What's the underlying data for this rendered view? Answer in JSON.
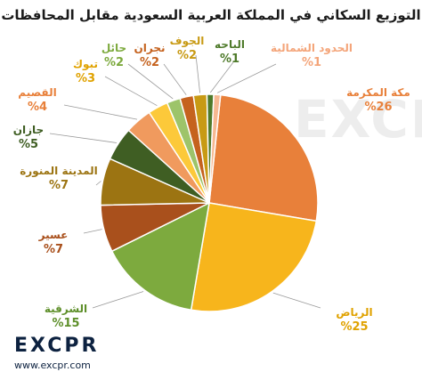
{
  "chart_data": {
    "type": "pie",
    "title": "التوزيع السكاني في المملكة العربية السعودية مقابل المحافظات",
    "unit_prefix": "%",
    "slices": [
      {
        "label": "مكة المكرمة",
        "value": 26,
        "color": "#E8803A"
      },
      {
        "label": "الرياض",
        "value": 25,
        "color": "#F7B51C"
      },
      {
        "label": "الشرقية",
        "value": 15,
        "color": "#7DAA3E"
      },
      {
        "label": "عسير",
        "value": 7,
        "color": "#A9501C"
      },
      {
        "label": "المدينة المنورة",
        "value": 7,
        "color": "#9C7412"
      },
      {
        "label": "جازان",
        "value": 5,
        "color": "#3F5E23"
      },
      {
        "label": "القصيم",
        "value": 4,
        "color": "#F09A5E"
      },
      {
        "label": "تبوك",
        "value": 3,
        "color": "#FCC93A"
      },
      {
        "label": "حائل",
        "value": 2,
        "color": "#9DC46A"
      },
      {
        "label": "نجران",
        "value": 2,
        "color": "#C5621E"
      },
      {
        "label": "الجوف",
        "value": 2,
        "color": "#C89A14"
      },
      {
        "label": "الباحه",
        "value": 1,
        "color": "#4E7A2A"
      },
      {
        "label": "الحدود الشمالية",
        "value": 1,
        "color": "#F6B891"
      }
    ],
    "value_labels": [
      "%26",
      "%25",
      "%15",
      "%7",
      "%7",
      "%5",
      "%4",
      "%3",
      "%2",
      "%2",
      "%2",
      "%1",
      "%1"
    ]
  },
  "branding": {
    "logo_text": "EXCPR",
    "url": "www.excpr.com",
    "watermark": "EXCPR"
  }
}
